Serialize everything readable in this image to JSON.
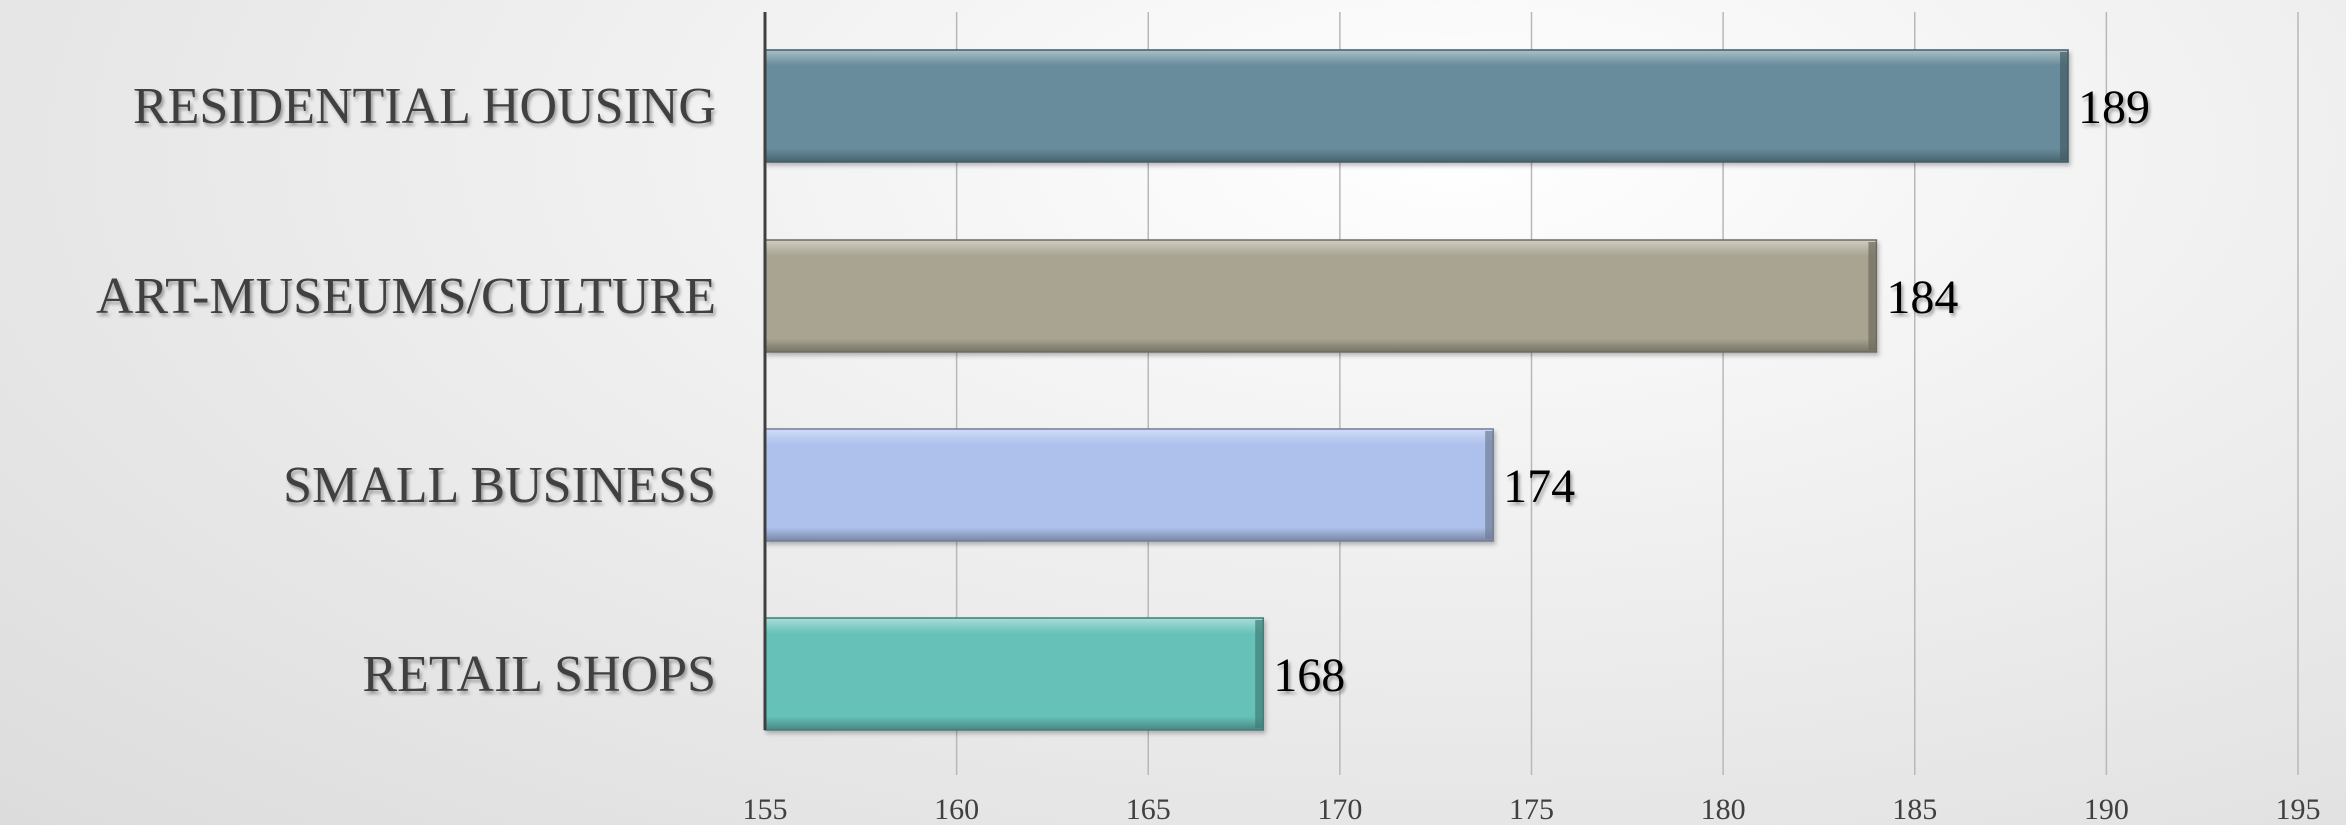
{
  "chart_data": {
    "type": "bar",
    "orientation": "horizontal",
    "categories": [
      "RESIDENTIAL HOUSING",
      "ART-MUSEUMS/CULTURE",
      "SMALL BUSINESS",
      "RETAIL SHOPS"
    ],
    "values": [
      189,
      184,
      174,
      168
    ],
    "colors": [
      "#678c9b",
      "#a9a491",
      "#adc1ec",
      "#66c1b8"
    ],
    "title": "",
    "xlabel": "",
    "ylabel": "",
    "xlim": [
      155,
      195
    ],
    "xticks": [
      155,
      160,
      165,
      170,
      175,
      180,
      185,
      190,
      195
    ],
    "grid": "vertical",
    "legend": "none",
    "data_labels": true
  }
}
